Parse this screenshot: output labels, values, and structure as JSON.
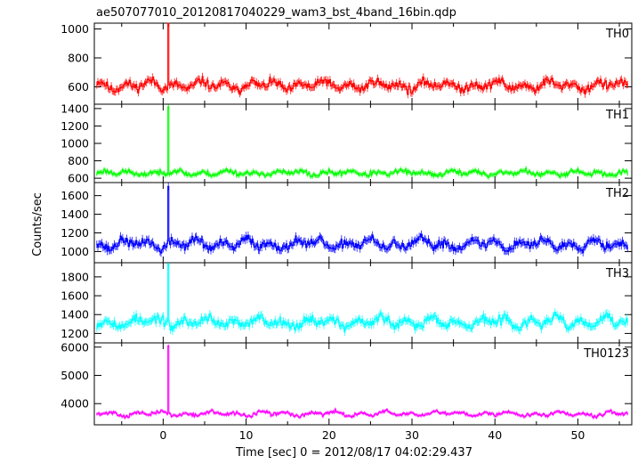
{
  "chart_data": {
    "type": "line",
    "title": "ae507077010_20120817040229_wam3_bst_4band_16bin.qdp",
    "xlabel": "Time [sec] 0 = 2012/08/17 04:02:29.437",
    "ylabel": "Counts/sec",
    "xlim": [
      -8.3,
      56.5
    ],
    "x_ticks": [
      0,
      10,
      20,
      30,
      40,
      50
    ],
    "x_tick_labels": [
      "0",
      "10",
      "20",
      "30",
      "40",
      "50"
    ],
    "x_step": 0.125,
    "burst_time": 0.6,
    "grid": false,
    "panels": [
      {
        "name": "TH0",
        "color": "#ff0000",
        "ylim": [
          480,
          1040
        ],
        "yticks": [
          600,
          800,
          1000
        ],
        "baseline": 610,
        "noise_sd": 28,
        "wave_amp": 35,
        "burst_peak": 1040,
        "seed": 11
      },
      {
        "name": "TH1",
        "color": "#00ff00",
        "ylim": [
          550,
          1450
        ],
        "yticks": [
          600,
          800,
          1000,
          1200,
          1400
        ],
        "baseline": 660,
        "noise_sd": 28,
        "wave_amp": 30,
        "burst_peak": 1420,
        "seed": 23
      },
      {
        "name": "TH2",
        "color": "#0000ff",
        "ylim": [
          880,
          1740
        ],
        "yticks": [
          1000,
          1200,
          1400,
          1600
        ],
        "baseline": 1080,
        "noise_sd": 45,
        "wave_amp": 60,
        "burst_peak": 1700,
        "seed": 37
      },
      {
        "name": "TH3",
        "color": "#00ffff",
        "ylim": [
          1100,
          1950
        ],
        "yticks": [
          1200,
          1400,
          1600,
          1800
        ],
        "baseline": 1320,
        "noise_sd": 45,
        "wave_amp": 60,
        "burst_peak": 1940,
        "seed": 53
      },
      {
        "name": "TH0123",
        "color": "#ff00ff",
        "ylim": [
          3250,
          6150
        ],
        "yticks": [
          4000,
          5000,
          6000
        ],
        "baseline": 3640,
        "noise_sd": 60,
        "wave_amp": 90,
        "burst_peak": 6050,
        "seed": 71
      }
    ]
  }
}
